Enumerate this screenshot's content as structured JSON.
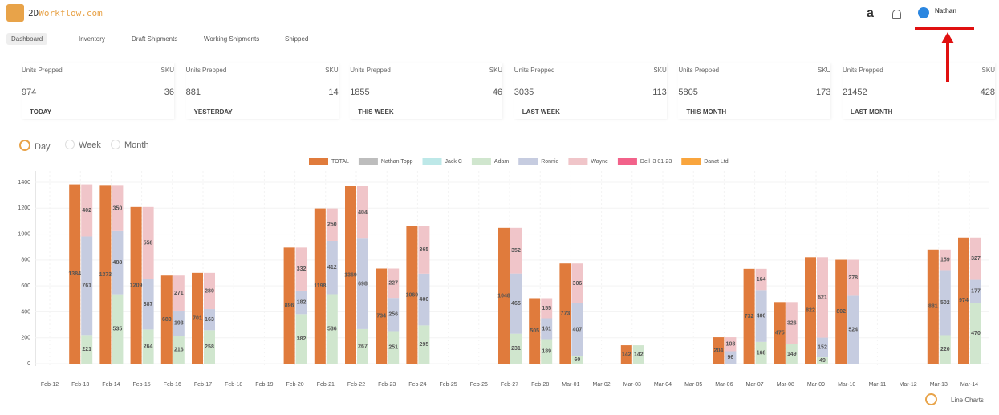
{
  "header": {
    "brand": [
      "2D",
      "Workflow",
      ".com"
    ],
    "nav": [
      "Dashboard",
      "Inventory",
      "Draft Shipments",
      "Working Shipments",
      "Shipped"
    ],
    "user": "Nathan",
    "amazon": "a"
  },
  "stats": [
    {
      "label": "Units Prepped",
      "sku_label": "SKU",
      "units": 974,
      "sku": 36,
      "period": "TODAY"
    },
    {
      "label": "Units Prepped",
      "sku_label": "SKU",
      "units": 881,
      "sku": 14,
      "period": "YESTERDAY"
    },
    {
      "label": "Units Prepped",
      "sku_label": "SKU",
      "units": 1855,
      "sku": 46,
      "period": "THIS WEEK"
    },
    {
      "label": "Units Prepped",
      "sku_label": "SKU",
      "units": 3035,
      "sku": 113,
      "period": "LAST WEEK"
    },
    {
      "label": "Units Prepped",
      "sku_label": "SKU",
      "units": 5805,
      "sku": 173,
      "period": "THIS MONTH"
    },
    {
      "label": "Units Prepped",
      "sku_label": "SKU",
      "units": 21452,
      "sku": 428,
      "period": "LAST MONTH"
    }
  ],
  "periods": {
    "options": [
      "Day",
      "Week",
      "Month"
    ],
    "selected": "Day"
  },
  "toggle": "Line Charts",
  "chart_data": {
    "type": "bar",
    "categories": [
      "Feb-12",
      "Feb-13",
      "Feb-14",
      "Feb-15",
      "Feb-16",
      "Feb-17",
      "Feb-18",
      "Feb-19",
      "Feb-20",
      "Feb-21",
      "Feb-22",
      "Feb-23",
      "Feb-24",
      "Feb-25",
      "Feb-26",
      "Feb-27",
      "Feb-28",
      "Mar-01",
      "Mar-02",
      "Mar-03",
      "Mar-04",
      "Mar-05",
      "Mar-06",
      "Mar-07",
      "Mar-08",
      "Mar-09",
      "Mar-10",
      "Mar-11",
      "Mar-12",
      "Mar-13",
      "Mar-14"
    ],
    "ylim": [
      0,
      1400
    ],
    "yticks": [
      0,
      200,
      400,
      600,
      800,
      1000,
      1200,
      1400
    ],
    "series": [
      {
        "name": "TOTAL",
        "color": "#e07b3c",
        "stacked": false,
        "values": [
          null,
          1384,
          1373,
          1209,
          680,
          701,
          null,
          null,
          896,
          1198,
          1369,
          734,
          1060,
          null,
          null,
          1048,
          505,
          773,
          null,
          142,
          null,
          null,
          204,
          732,
          475,
          822,
          802,
          null,
          null,
          881,
          974
        ]
      },
      {
        "name": "Nathan Topp",
        "color": "#bdbdbd",
        "stacked": true,
        "values": [
          null,
          null,
          null,
          null,
          null,
          null,
          null,
          null,
          null,
          null,
          null,
          null,
          null,
          null,
          null,
          null,
          null,
          null,
          null,
          null,
          null,
          null,
          null,
          null,
          null,
          null,
          null,
          null,
          null,
          null,
          null
        ]
      },
      {
        "name": "Jack C",
        "color": "#bde8e8",
        "stacked": true,
        "values": [
          null,
          null,
          null,
          null,
          null,
          null,
          null,
          null,
          null,
          null,
          null,
          null,
          null,
          null,
          null,
          null,
          null,
          null,
          null,
          null,
          null,
          null,
          null,
          null,
          null,
          null,
          null,
          null,
          null,
          null,
          null
        ]
      },
      {
        "name": "Adam",
        "color": "#d0e6ce",
        "stacked": true,
        "values": [
          null,
          221,
          535,
          264,
          216,
          258,
          null,
          null,
          382,
          536,
          267,
          251,
          295,
          null,
          null,
          231,
          189,
          60,
          null,
          142,
          null,
          null,
          0,
          168,
          149,
          49,
          0,
          null,
          null,
          220,
          470
        ]
      },
      {
        "name": "Ronnie",
        "color": "#c6cce0",
        "stacked": true,
        "values": [
          null,
          761,
          488,
          387,
          193,
          163,
          null,
          null,
          182,
          412,
          698,
          256,
          400,
          null,
          null,
          465,
          161,
          407,
          null,
          0,
          null,
          null,
          96,
          400,
          0,
          152,
          524,
          null,
          null,
          502,
          177
        ]
      },
      {
        "name": "Wayne",
        "color": "#f0c5c9",
        "stacked": true,
        "values": [
          null,
          402,
          350,
          558,
          271,
          280,
          null,
          null,
          332,
          250,
          404,
          227,
          365,
          null,
          null,
          352,
          155,
          306,
          null,
          0,
          null,
          null,
          108,
          164,
          326,
          621,
          278,
          null,
          null,
          159,
          327
        ]
      },
      {
        "name": "Dell i3 01-23",
        "color": "#f2628a",
        "stacked": true,
        "values": [
          null,
          null,
          null,
          null,
          null,
          null,
          null,
          null,
          null,
          null,
          null,
          null,
          null,
          null,
          null,
          null,
          null,
          null,
          null,
          null,
          null,
          null,
          null,
          null,
          null,
          null,
          null,
          null,
          null,
          null,
          null
        ]
      },
      {
        "name": "Danat Ltd",
        "color": "#f9a53d",
        "stacked": true,
        "values": [
          null,
          null,
          null,
          null,
          null,
          null,
          null,
          null,
          null,
          null,
          null,
          null,
          null,
          null,
          null,
          null,
          null,
          null,
          null,
          null,
          null,
          null,
          null,
          null,
          null,
          null,
          null,
          null,
          null,
          null,
          null
        ]
      }
    ]
  }
}
